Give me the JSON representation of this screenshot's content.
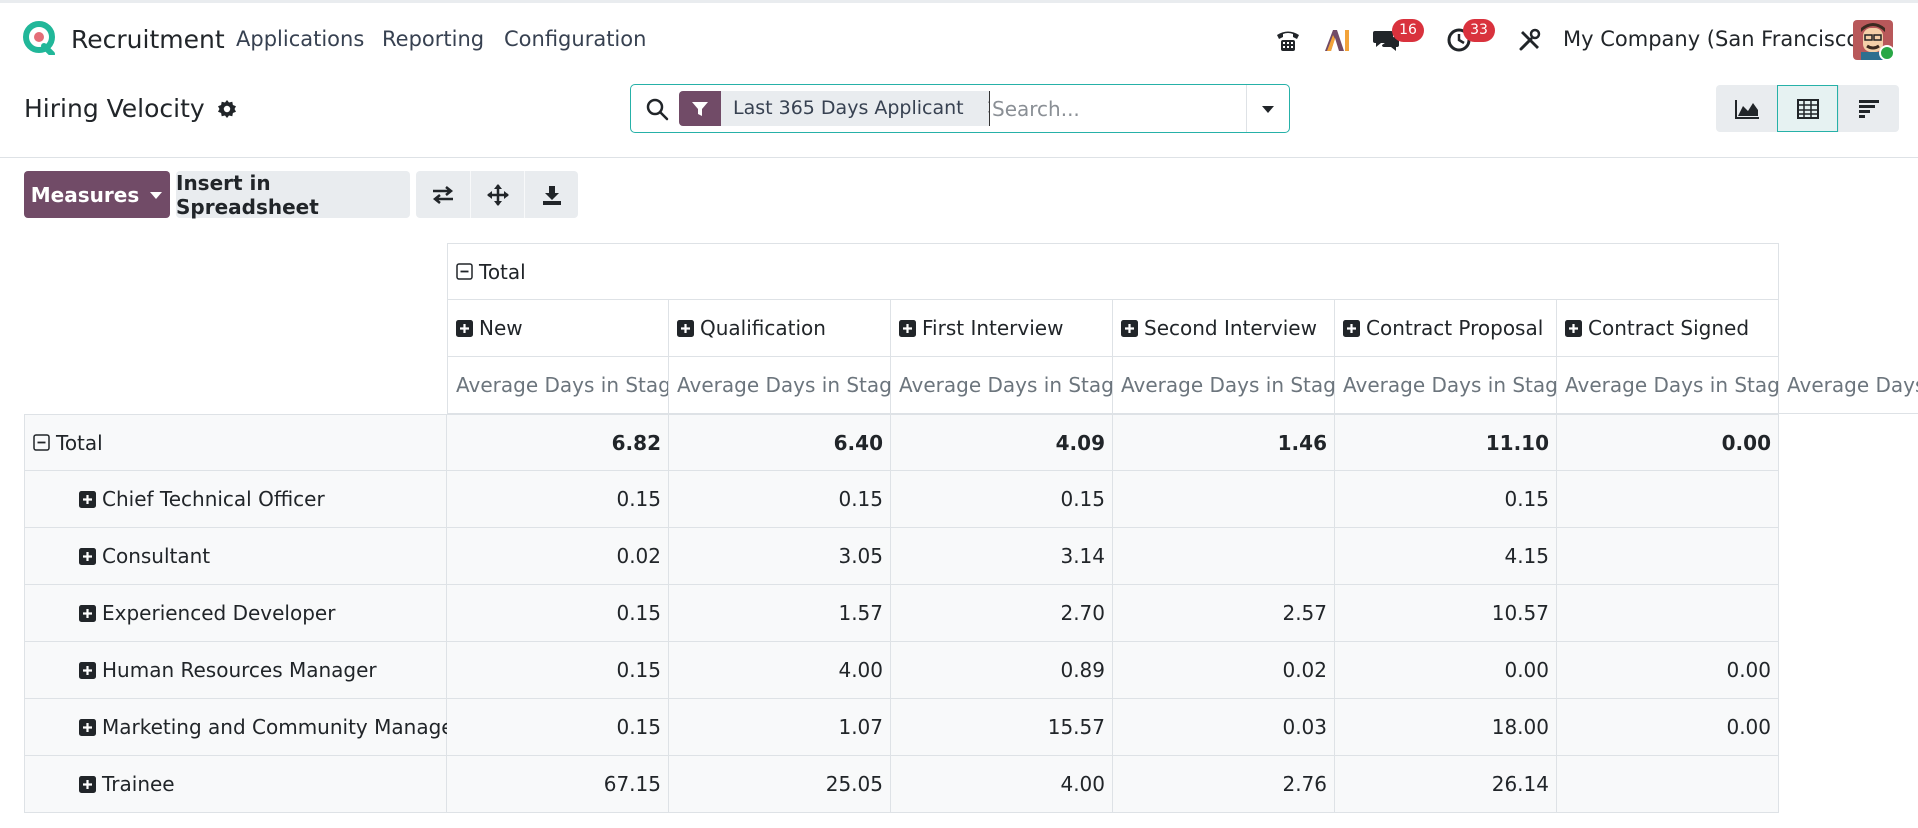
{
  "app": {
    "name": "Recruitment",
    "menus": [
      "Applications",
      "Reporting",
      "Configuration"
    ],
    "chat_badge": "16",
    "activity_badge": "33",
    "company": "My Company (San Francisco)",
    "accent_color": "#714b67",
    "teal_color": "#26b1a8",
    "badge_color": "#d9323d"
  },
  "page": {
    "title": "Hiring Velocity"
  },
  "search": {
    "facet_label": "Last 365 Days Applicant",
    "placeholder": "Search..."
  },
  "views": [
    "graph-view-icon",
    "pivot-view-icon",
    "cohort-view-icon"
  ],
  "toolbar": {
    "measures_label": "Measures",
    "insert_label": "Insert in Spreadsheet"
  },
  "pivot": {
    "col_total_label": "Total",
    "columns": [
      "New",
      "Qualification",
      "First Interview",
      "Second Interview",
      "Contract Proposal",
      "Contract Signed"
    ],
    "measure_label": "Average Days in Stage",
    "overflow_measure_label": "Average Days i",
    "row_total_label": "Total",
    "totals": [
      "6.82",
      "6.40",
      "4.09",
      "1.46",
      "11.10",
      "0.00"
    ],
    "rows": [
      {
        "label": "Chief Technical Officer",
        "values": [
          "0.15",
          "0.15",
          "0.15",
          "",
          "0.15",
          ""
        ]
      },
      {
        "label": "Consultant",
        "values": [
          "0.02",
          "3.05",
          "3.14",
          "",
          "4.15",
          ""
        ]
      },
      {
        "label": "Experienced Developer",
        "values": [
          "0.15",
          "1.57",
          "2.70",
          "2.57",
          "10.57",
          ""
        ]
      },
      {
        "label": "Human Resources Manager",
        "values": [
          "0.15",
          "4.00",
          "0.89",
          "0.02",
          "0.00",
          "0.00"
        ]
      },
      {
        "label": "Marketing and Community Manager",
        "values": [
          "0.15",
          "1.07",
          "15.57",
          "0.03",
          "18.00",
          "0.00"
        ]
      },
      {
        "label": "Trainee",
        "values": [
          "67.15",
          "25.05",
          "4.00",
          "2.76",
          "26.14",
          ""
        ]
      }
    ]
  }
}
